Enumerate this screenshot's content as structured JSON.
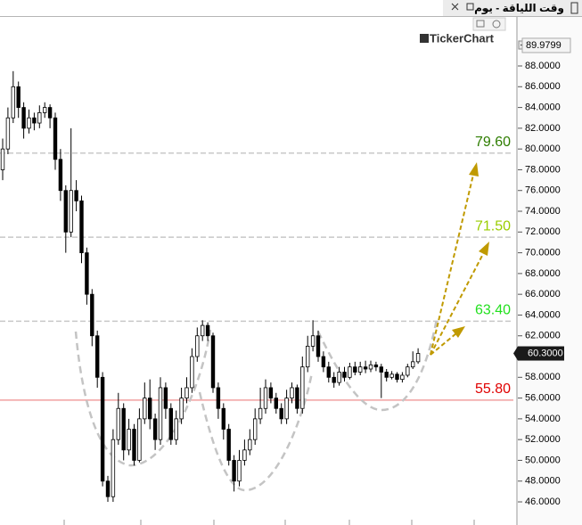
{
  "window": {
    "title": "وقت اللياقة - يوم"
  },
  "watermark": "TickerChart",
  "chart_data": {
    "type": "candlestick",
    "open": [
      78,
      80,
      83,
      86,
      84,
      82,
      83,
      82.5,
      83.5,
      84,
      83,
      79,
      76,
      72,
      76,
      75,
      70,
      66,
      62,
      58,
      48,
      46.5,
      52,
      55,
      51,
      53,
      50,
      54,
      56,
      54,
      52,
      57,
      55,
      52,
      54,
      56,
      57,
      60,
      62,
      63,
      62,
      57,
      55,
      53,
      50,
      48,
      50,
      51,
      52,
      54,
      55,
      57,
      56,
      55,
      54,
      56,
      57,
      55,
      59,
      61,
      62,
      60,
      59,
      58,
      57.5,
      58.5,
      58,
      59,
      58.5,
      59,
      58.8,
      59.2,
      59,
      58.5,
      58,
      58.3,
      57.8,
      58.2,
      59,
      59.5
    ],
    "high": [
      81,
      84,
      87.5,
      86.5,
      84.5,
      83.8,
      83.5,
      84.2,
      84.5,
      84.3,
      83.5,
      80,
      76.5,
      82,
      77,
      75.5,
      70.5,
      66.5,
      62.5,
      58.5,
      48.5,
      53,
      56.5,
      55.5,
      54,
      53.5,
      55,
      57.5,
      57.8,
      54.5,
      58,
      57.5,
      55.5,
      54.8,
      57,
      58,
      60.8,
      62.8,
      63.5,
      63.3,
      62.3,
      57.5,
      55.5,
      53.5,
      50.5,
      51,
      52,
      53,
      55,
      57,
      57.8,
      57.5,
      56.5,
      55.5,
      56.8,
      57.5,
      57.3,
      60,
      62,
      63.5,
      62.5,
      60.5,
      59.5,
      58.5,
      59,
      59,
      59.4,
      59.5,
      59.5,
      59.6,
      59.6,
      59.5,
      59.3,
      58.8,
      58.6,
      58.5,
      58.5,
      59.3,
      60.5,
      60.8
    ],
    "low": [
      77,
      79.5,
      82.5,
      83,
      81,
      81.5,
      81.8,
      82,
      83,
      82,
      78,
      75,
      70,
      71.5,
      74,
      69,
      65,
      61,
      57,
      47.5,
      46,
      46,
      51.5,
      50,
      50.5,
      49.5,
      49.8,
      53.5,
      53,
      51,
      51.5,
      54,
      51.5,
      51.5,
      53.5,
      55.5,
      56.5,
      59.5,
      61.5,
      61.5,
      56.5,
      54,
      52,
      49.5,
      47,
      47.5,
      49.5,
      50.5,
      51.5,
      53.5,
      54.5,
      55.5,
      54.5,
      53.5,
      53.5,
      55.5,
      54.5,
      54.5,
      58.5,
      60.5,
      59.5,
      58.5,
      57.5,
      57,
      57.2,
      57.6,
      57.8,
      58.2,
      58.2,
      58.4,
      58.5,
      58.6,
      56,
      57.6,
      57.8,
      57.5,
      57.5,
      58,
      58.8,
      59.3
    ],
    "close": [
      80,
      83,
      86,
      84,
      82,
      83,
      82.5,
      83.5,
      84,
      83,
      79,
      76,
      72,
      76,
      75,
      70,
      66,
      62,
      58,
      48,
      46.5,
      52,
      55,
      51,
      53,
      50,
      54,
      56,
      54,
      52,
      57,
      55,
      52,
      54,
      56,
      57,
      60,
      62,
      63,
      62,
      57,
      55,
      53,
      50,
      48,
      50,
      51,
      52,
      54,
      55,
      57,
      56,
      55,
      54,
      56,
      57,
      55,
      59,
      61,
      62,
      60,
      59,
      58,
      57.5,
      58.5,
      58,
      59,
      58.5,
      59,
      58.8,
      59.2,
      59,
      58.5,
      58,
      58.3,
      57.8,
      58.2,
      59,
      59.5,
      60.3
    ],
    "up_color": "#ffffff",
    "down_color": "#000000",
    "ylim": [
      43.77,
      92.81
    ],
    "yticks": [
      {
        "value": 46,
        "label": "46.0000"
      },
      {
        "value": 48,
        "label": "48.0000"
      },
      {
        "value": 50,
        "label": "50.0000"
      },
      {
        "value": 52,
        "label": "52.0000"
      },
      {
        "value": 54,
        "label": "54.0000"
      },
      {
        "value": 56,
        "label": "56.0000"
      },
      {
        "value": 58,
        "label": "58.0000"
      },
      {
        "value": 60,
        "label": "60.0000"
      },
      {
        "value": 62,
        "label": "62.0000"
      },
      {
        "value": 64,
        "label": "64.0000"
      },
      {
        "value": 66,
        "label": "66.0000"
      },
      {
        "value": 68,
        "label": "68.0000"
      },
      {
        "value": 70,
        "label": "70.0000"
      },
      {
        "value": 72,
        "label": "72.0000"
      },
      {
        "value": 74,
        "label": "74.0000"
      },
      {
        "value": 76,
        "label": "76.0000"
      },
      {
        "value": 78,
        "label": "78.0000"
      },
      {
        "value": 80,
        "label": "80.0000"
      },
      {
        "value": 82,
        "label": "82.0000"
      },
      {
        "value": 84,
        "label": "84.0000"
      },
      {
        "value": 86,
        "label": "86.0000"
      },
      {
        "value": 88,
        "label": "88.0000"
      }
    ],
    "levels": [
      {
        "value": 79.6,
        "label": "79.60",
        "color": "#2e7d00",
        "line_color": "#c8c8c8",
        "dashed": true
      },
      {
        "value": 71.5,
        "label": "71.50",
        "color": "#9acd00",
        "line_color": "#c8c8c8",
        "dashed": true
      },
      {
        "value": 63.4,
        "label": "63.40",
        "color": "#22e01e",
        "line_color": "#c8c8c8",
        "dashed": true
      },
      {
        "value": 55.8,
        "label": "55.80",
        "color": "#e00000",
        "line_color": "#f0a0a0",
        "dashed": false
      }
    ],
    "last_price": {
      "value": 60.3,
      "label": "60.3000"
    },
    "top_price": {
      "value": 89.9799,
      "label": "89.9799"
    }
  }
}
